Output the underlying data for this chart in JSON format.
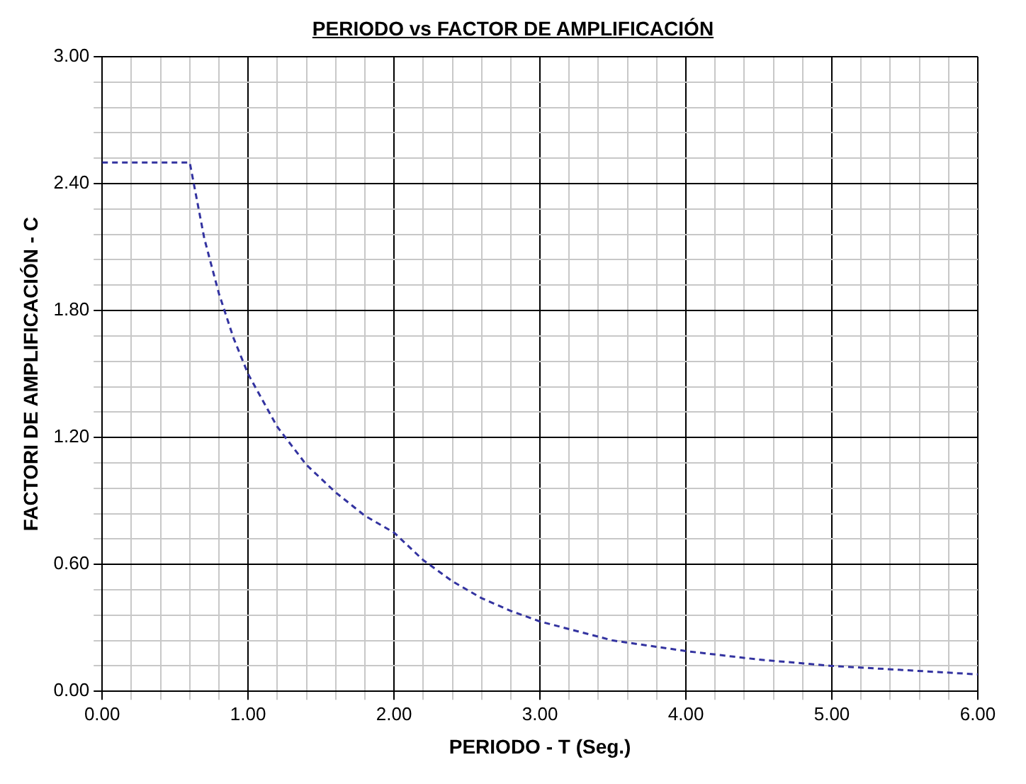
{
  "chart_data": {
    "type": "line",
    "title": "PERIODO vs FACTOR DE AMPLIFICACIÓN",
    "xlabel": "PERIODO - T (Seg.)",
    "ylabel": "FACTORI DE AMPLIFICACIÓN - C",
    "x": [
      0,
      0.6,
      0.7,
      0.8,
      0.9,
      1.0,
      1.2,
      1.4,
      1.6,
      1.8,
      2.0,
      2.2,
      2.4,
      2.6,
      2.8,
      3.0,
      3.5,
      4.0,
      4.5,
      5.0,
      5.5,
      6.0
    ],
    "series": [
      {
        "color": "#3333a0",
        "values": [
          2.5,
          2.5,
          2.14,
          1.88,
          1.67,
          1.5,
          1.25,
          1.07,
          0.94,
          0.83,
          0.75,
          0.62,
          0.52,
          0.44,
          0.38,
          0.33,
          0.24,
          0.19,
          0.15,
          0.12,
          0.1,
          0.08
        ]
      }
    ],
    "xlim": [
      0,
      6
    ],
    "ylim": [
      0,
      3
    ],
    "xticks": [
      {
        "value": 0,
        "label": "0.00"
      },
      {
        "value": 0.2,
        "label": null
      },
      {
        "value": 0.4,
        "label": null
      },
      {
        "value": 0.6,
        "label": null
      },
      {
        "value": 0.8,
        "label": null
      },
      {
        "value": 1,
        "label": "1.00"
      },
      {
        "value": 1.2,
        "label": null
      },
      {
        "value": 1.4,
        "label": null
      },
      {
        "value": 1.6,
        "label": null
      },
      {
        "value": 1.8,
        "label": null
      },
      {
        "value": 2,
        "label": "2.00"
      },
      {
        "value": 2.2,
        "label": null
      },
      {
        "value": 2.4,
        "label": null
      },
      {
        "value": 2.6,
        "label": null
      },
      {
        "value": 2.8,
        "label": null
      },
      {
        "value": 3,
        "label": "3.00"
      },
      {
        "value": 3.2,
        "label": null
      },
      {
        "value": 3.4,
        "label": null
      },
      {
        "value": 3.6,
        "label": null
      },
      {
        "value": 3.8,
        "label": null
      },
      {
        "value": 4,
        "label": "4.00"
      },
      {
        "value": 4.2,
        "label": null
      },
      {
        "value": 4.4,
        "label": null
      },
      {
        "value": 4.6,
        "label": null
      },
      {
        "value": 4.8,
        "label": null
      },
      {
        "value": 5,
        "label": "5.00"
      },
      {
        "value": 5.2,
        "label": null
      },
      {
        "value": 5.4,
        "label": null
      },
      {
        "value": 5.6,
        "label": null
      },
      {
        "value": 5.8,
        "label": null
      },
      {
        "value": 6,
        "label": "6.00"
      }
    ],
    "yticks": [
      {
        "value": 0,
        "label": "0.00"
      },
      {
        "value": 0.12,
        "label": null
      },
      {
        "value": 0.24,
        "label": null
      },
      {
        "value": 0.36,
        "label": null
      },
      {
        "value": 0.48,
        "label": null
      },
      {
        "value": 0.6,
        "label": "0.60"
      },
      {
        "value": 0.72,
        "label": null
      },
      {
        "value": 0.84,
        "label": null
      },
      {
        "value": 0.96,
        "label": null
      },
      {
        "value": 1.08,
        "label": null
      },
      {
        "value": 1.2,
        "label": "1.20"
      },
      {
        "value": 1.32,
        "label": null
      },
      {
        "value": 1.44,
        "label": null
      },
      {
        "value": 1.56,
        "label": null
      },
      {
        "value": 1.68,
        "label": null
      },
      {
        "value": 1.8,
        "label": "1.80"
      },
      {
        "value": 1.92,
        "label": null
      },
      {
        "value": 2.04,
        "label": null
      },
      {
        "value": 2.16,
        "label": null
      },
      {
        "value": 2.28,
        "label": null
      },
      {
        "value": 2.4,
        "label": "2.40"
      },
      {
        "value": 2.52,
        "label": null
      },
      {
        "value": 2.64,
        "label": null
      },
      {
        "value": 2.76,
        "label": null
      },
      {
        "value": 2.88,
        "label": null
      },
      {
        "value": 3,
        "label": "3.00"
      }
    ],
    "grid": true,
    "legend": false,
    "marker": "none",
    "line_style": "dashed"
  }
}
